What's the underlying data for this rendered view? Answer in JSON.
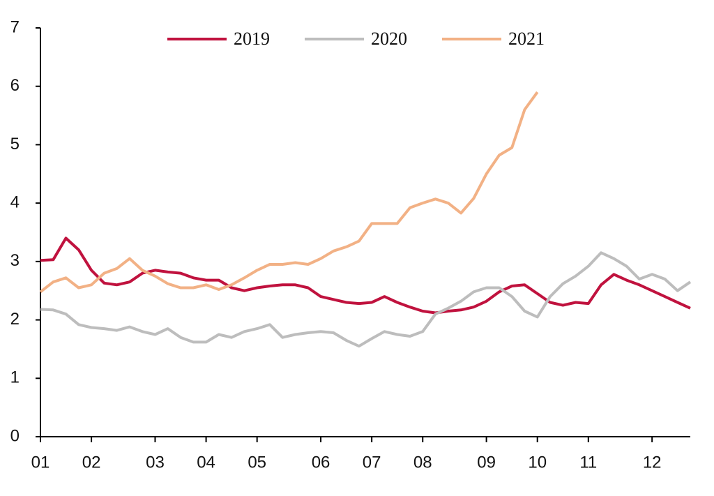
{
  "chart_data": {
    "type": "line",
    "categories": [
      "01",
      null,
      null,
      null,
      "02",
      null,
      null,
      null,
      null,
      "03",
      null,
      null,
      null,
      "04",
      null,
      null,
      null,
      "05",
      null,
      null,
      null,
      null,
      "06",
      null,
      null,
      null,
      "07",
      null,
      null,
      null,
      "08",
      null,
      null,
      null,
      null,
      "09",
      null,
      null,
      null,
      "10",
      null,
      null,
      null,
      "11",
      null,
      null,
      null,
      null,
      "12",
      null,
      null,
      null
    ],
    "series": [
      {
        "name": "2019",
        "color": "#c0123e",
        "values": [
          3.02,
          3.03,
          3.4,
          3.2,
          2.85,
          2.63,
          2.6,
          2.65,
          2.8,
          2.85,
          2.82,
          2.8,
          2.72,
          2.68,
          2.68,
          2.55,
          2.5,
          2.55,
          2.58,
          2.6,
          2.6,
          2.55,
          2.4,
          2.35,
          2.3,
          2.28,
          2.3,
          2.4,
          2.3,
          2.22,
          2.15,
          2.12,
          2.15,
          2.17,
          2.22,
          2.32,
          2.48,
          2.58,
          2.6,
          2.45,
          2.3,
          2.25,
          2.3,
          2.28,
          2.6,
          2.78,
          2.68,
          2.6,
          2.5,
          2.4,
          2.3,
          2.2
        ]
      },
      {
        "name": "2020",
        "color": "#bdbdbd",
        "values": [
          2.18,
          2.17,
          2.1,
          1.92,
          1.87,
          1.85,
          1.82,
          1.88,
          1.8,
          1.75,
          1.85,
          1.7,
          1.62,
          1.62,
          1.75,
          1.7,
          1.8,
          1.85,
          1.92,
          1.7,
          1.75,
          1.78,
          1.8,
          1.78,
          1.65,
          1.55,
          1.68,
          1.8,
          1.75,
          1.72,
          1.8,
          2.1,
          2.2,
          2.32,
          2.48,
          2.55,
          2.55,
          2.4,
          2.15,
          2.05,
          2.4,
          2.62,
          2.75,
          2.92,
          3.15,
          3.05,
          2.92,
          2.7,
          2.78,
          2.7,
          2.5,
          2.65
        ]
      },
      {
        "name": "2021",
        "color": "#f2b185",
        "values": [
          2.48,
          2.65,
          2.72,
          2.55,
          2.6,
          2.8,
          2.88,
          3.05,
          2.85,
          2.75,
          2.62,
          2.55,
          2.55,
          2.6,
          2.52,
          2.6,
          2.72,
          2.85,
          2.95,
          2.95,
          2.98,
          2.95,
          3.05,
          3.18,
          3.25,
          3.35,
          3.65,
          3.65,
          3.65,
          3.92,
          4.0,
          4.07,
          4.0,
          3.83,
          4.08,
          4.5,
          4.82,
          4.95,
          5.6,
          5.9,
          null,
          null,
          null,
          null,
          null,
          null,
          null,
          null,
          null,
          null,
          null,
          null
        ]
      }
    ],
    "ylim": [
      0,
      7
    ],
    "yticks": [
      0,
      1,
      2,
      3,
      4,
      5,
      6,
      7
    ],
    "legend": "top"
  }
}
